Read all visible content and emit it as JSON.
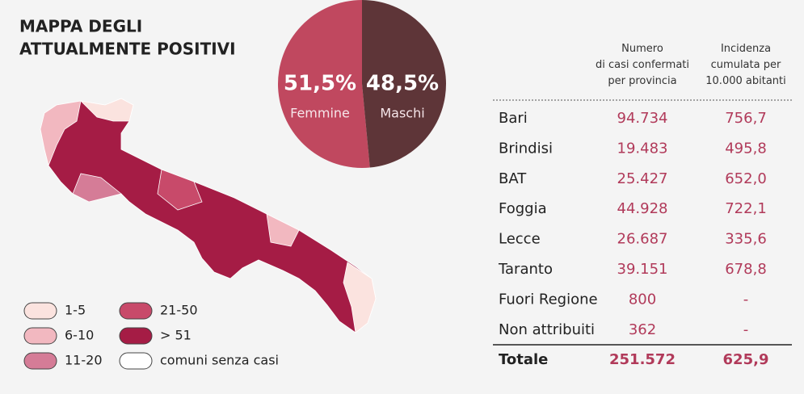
{
  "title_lines": [
    "MAPPA DEGLI",
    "ATTUALMENTE POSITIVI"
  ],
  "chart_data": {
    "type": "pie",
    "categories": [
      "Femmine",
      "Maschi"
    ],
    "values": [
      51.5,
      48.5
    ],
    "value_labels": [
      "51,5%",
      "48,5%"
    ],
    "colors": [
      "#c0485f",
      "#5e3538"
    ]
  },
  "map_legend": [
    {
      "label": "1-5",
      "color": "#fbe3df"
    },
    {
      "label": "6-10",
      "color": "#f2b8c0"
    },
    {
      "label": "11-20",
      "color": "#d57c97"
    },
    {
      "label": "21-50",
      "color": "#c84a6a"
    },
    {
      "label": "> 51",
      "color": "#a51c45"
    },
    {
      "label": "comuni senza casi",
      "color": "#ffffff"
    }
  ],
  "table": {
    "headers": [
      "Numero\ndi casi confermati\nper provincia",
      "Incidenza\ncumulata per\n10.000 abitanti"
    ],
    "rows": [
      [
        "Bari",
        "94.734",
        "756,7"
      ],
      [
        "Brindisi",
        "19.483",
        "495,8"
      ],
      [
        "BAT",
        "25.427",
        "652,0"
      ],
      [
        "Foggia",
        "44.928",
        "722,1"
      ],
      [
        "Lecce",
        "26.687",
        "335,6"
      ],
      [
        "Taranto",
        "39.151",
        "678,8"
      ],
      [
        "Fuori Regione",
        "800",
        "-"
      ],
      [
        "Non attribuiti",
        "362",
        "-"
      ]
    ],
    "total": [
      "Totale",
      "251.572",
      "625,9"
    ]
  }
}
